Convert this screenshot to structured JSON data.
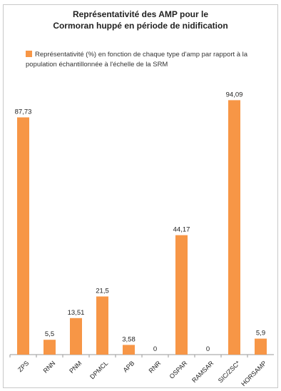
{
  "chart_data": {
    "type": "bar",
    "title_line1": "Représentativité des AMP pour le",
    "title_line2": "Cormoran huppé en période de nidification",
    "categories": [
      "ZPS",
      "RNN",
      "PNM",
      "DPMCL",
      "APB",
      "RNR",
      "OSPAR",
      "RAMSAR",
      "SIC/ZSC*",
      "HORSAMP"
    ],
    "series": [
      {
        "name": "Représentativité (%) en fonction de chaque type d'amp par rapport à la population échantillonnée à l'échelle de la SRM",
        "values": [
          87.73,
          5.5,
          13.51,
          21.5,
          3.58,
          0,
          44.17,
          0,
          94.09,
          5.9
        ]
      }
    ],
    "value_labels": [
      "87,73",
      "5,5",
      "13,51",
      "21,5",
      "3,58",
      "0",
      "44,17",
      "0",
      "94,09",
      "5,9"
    ],
    "ylim": [
      0,
      100
    ],
    "grid": false,
    "legend_position": "top",
    "bar_color": "#f79646"
  }
}
